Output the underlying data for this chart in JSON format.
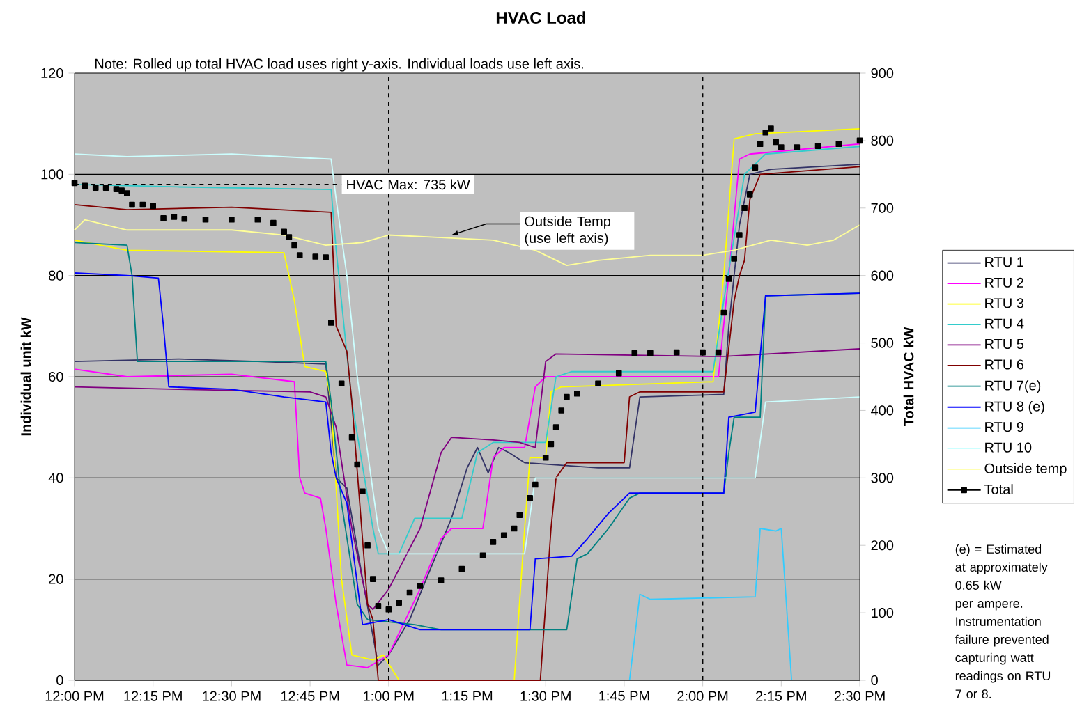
{
  "chart_data": {
    "type": "line",
    "title": "HVAC Load",
    "ylabel": "Individual unit kW",
    "y2label": "Total HVAC kW",
    "xlim": [
      12,
      14.5
    ],
    "xticks": [
      {
        "value": 12,
        "label": "12:00 PM"
      },
      {
        "value": 12.25,
        "label": "12:15 PM"
      },
      {
        "value": 12.5,
        "label": "12:30 PM"
      },
      {
        "value": 12.75,
        "label": "12:45 PM"
      },
      {
        "value": 13,
        "label": "1:00 PM"
      },
      {
        "value": 13.25,
        "label": "1:15 PM"
      },
      {
        "value": 13.5,
        "label": "1:30 PM"
      },
      {
        "value": 13.75,
        "label": "1:45 PM"
      },
      {
        "value": 14,
        "label": "2:00 PM"
      },
      {
        "value": 14.25,
        "label": "2:15 PM"
      },
      {
        "value": 14.5,
        "label": "2:30 PM"
      }
    ],
    "ylim": [
      0,
      120
    ],
    "yticks": [
      0,
      20,
      40,
      60,
      80,
      100,
      120
    ],
    "y2lim": [
      0,
      900
    ],
    "y2ticks": [
      0,
      100,
      200,
      300,
      400,
      500,
      600,
      700,
      800,
      900
    ],
    "grid": "y",
    "legend": "right",
    "series": [
      {
        "name": "RTU 1",
        "color": "#333366",
        "x": [
          12,
          12.333,
          12.583,
          12.8,
          12.833,
          12.867,
          12.917,
          12.967,
          13,
          13.067,
          13.133,
          13.2,
          13.25,
          13.283,
          13.317,
          13.35,
          13.383,
          13.433,
          13.667,
          13.767,
          13.8,
          14.067,
          14.083,
          14.117,
          14.15,
          14.217,
          14.5
        ],
        "values": [
          63,
          63.5,
          63,
          62.5,
          40,
          38,
          20,
          3,
          5,
          12,
          22,
          32,
          42,
          46,
          41,
          46,
          45,
          43,
          42,
          42,
          56,
          56.5,
          70,
          90,
          100,
          101,
          102
        ]
      },
      {
        "name": "RTU 2",
        "color": "#ff00ff",
        "x": [
          12,
          12.167,
          12.5,
          12.7,
          12.717,
          12.733,
          12.783,
          12.8,
          12.833,
          12.867,
          12.933,
          13,
          13.1,
          13.167,
          13.2,
          13.3,
          13.333,
          13.367,
          13.433,
          13.467,
          13.5,
          14.05,
          14.083,
          14.117,
          14.15,
          14.5
        ],
        "values": [
          61.5,
          60,
          60.5,
          59,
          40,
          37,
          36,
          30,
          15,
          3,
          2.5,
          5,
          18,
          28,
          30,
          30,
          44,
          46,
          46,
          58,
          60,
          60,
          80,
          103,
          104,
          106
        ]
      },
      {
        "name": "RTU 3",
        "color": "#ffff00",
        "x": [
          12,
          12.083,
          12.167,
          12.667,
          12.7,
          12.733,
          12.8,
          12.817,
          12.85,
          12.883,
          12.95,
          12.983,
          13.033,
          13.4,
          13.433,
          13.45,
          13.5,
          13.517,
          13.55,
          14.033,
          14.067,
          14.1,
          14.167,
          14.5
        ],
        "values": [
          87,
          86,
          85,
          84.5,
          75,
          62,
          61,
          55,
          20,
          5,
          4,
          5,
          0,
          0,
          30,
          44,
          44,
          57,
          58,
          59,
          80,
          107,
          108,
          109
        ]
      },
      {
        "name": "RTU 4",
        "color": "#33cccc",
        "x": [
          12,
          12.333,
          12.817,
          12.833,
          12.883,
          12.95,
          12.967,
          13.033,
          13.083,
          13.233,
          13.283,
          13.333,
          13.5,
          13.533,
          13.583,
          14.033,
          14.067,
          14.133,
          14.2,
          14.5
        ],
        "values": [
          98,
          97.5,
          97,
          85,
          55,
          30,
          25,
          25,
          32,
          32,
          45,
          47,
          47,
          60,
          61,
          61,
          75,
          100,
          104,
          105.5
        ]
      },
      {
        "name": "RTU 5",
        "color": "#800080",
        "x": [
          12,
          12.333,
          12.75,
          12.8,
          12.833,
          12.883,
          12.933,
          12.95,
          13,
          13.1,
          13.167,
          13.2,
          13.333,
          13.417,
          13.467,
          13.5,
          13.533,
          14.033,
          14.067,
          14.5
        ],
        "values": [
          58,
          57.5,
          57,
          56,
          50,
          30,
          15,
          14,
          18,
          30,
          45,
          48,
          47.5,
          47,
          46,
          63,
          64.5,
          64,
          64,
          65.5
        ]
      },
      {
        "name": "RTU 6",
        "color": "#800000",
        "x": [
          12,
          12.167,
          12.5,
          12.817,
          12.833,
          12.867,
          12.883,
          12.933,
          12.95,
          12.967,
          13.483,
          13.517,
          13.533,
          13.567,
          13.75,
          13.767,
          13.8,
          14.067,
          14.1,
          14.117,
          14.133,
          14.15,
          14.183,
          14.5
        ],
        "values": [
          94,
          93,
          93.5,
          92.5,
          70,
          65,
          55,
          15,
          12,
          0,
          0,
          30,
          40,
          43,
          43,
          56,
          57,
          57,
          75,
          80,
          83,
          95,
          100,
          101.5
        ]
      },
      {
        "name": "RTU 7(e)",
        "color": "#008080",
        "x": [
          12,
          12.167,
          12.183,
          12.2,
          12.8,
          12.817,
          12.85,
          12.9,
          12.933,
          13.083,
          13.167,
          13.567,
          13.6,
          13.633,
          13.7,
          13.767,
          13.8,
          14.067,
          14.083,
          14.1,
          14.183,
          14.2,
          14.5
        ],
        "values": [
          86.5,
          86,
          80,
          63,
          63,
          55,
          35,
          15,
          12,
          11,
          10,
          10,
          24,
          25,
          30,
          36,
          37,
          37,
          45,
          52,
          52,
          76,
          76.5
        ]
      },
      {
        "name": "RTU 8 (e)",
        "color": "#0000ff",
        "x": [
          12,
          12.167,
          12.267,
          12.283,
          12.3,
          12.5,
          12.667,
          12.8,
          12.817,
          12.833,
          12.867,
          12.917,
          13,
          13.1,
          13.45,
          13.467,
          13.583,
          13.633,
          13.7,
          13.767,
          14.067,
          14.083,
          14.167,
          14.2,
          14.5
        ],
        "values": [
          80.5,
          80,
          79.5,
          70,
          58,
          57.5,
          56,
          55,
          45,
          40,
          35,
          11,
          12,
          10,
          10,
          24,
          24.5,
          28,
          33,
          37,
          37,
          52,
          53,
          76,
          76.5
        ]
      },
      {
        "name": "RTU 9",
        "color": "#33ccff",
        "x": [
          13.767,
          13.8,
          13.833,
          14.167,
          14.183,
          14.233,
          14.25,
          14.283
        ],
        "values": [
          0,
          17,
          16,
          16.5,
          30,
          29.5,
          30,
          0
        ]
      },
      {
        "name": "RTU 10",
        "color": "#ccffff",
        "x": [
          12,
          12.167,
          12.5,
          12.817,
          12.833,
          12.867,
          12.9,
          12.933,
          12.967,
          13,
          13.433,
          13.467,
          14.167,
          14.2,
          14.5
        ],
        "values": [
          104,
          103.5,
          104,
          103,
          95,
          80,
          60,
          45,
          30,
          25,
          25,
          40,
          40,
          55,
          56
        ]
      },
      {
        "name": "Outside temp",
        "color": "#ffff99",
        "x": [
          12,
          12.033,
          12.167,
          12.5,
          12.667,
          12.8,
          12.917,
          13,
          13.167,
          13.333,
          13.467,
          13.567,
          13.667,
          13.833,
          14,
          14.1,
          14.217,
          14.333,
          14.417,
          14.5
        ],
        "values": [
          89,
          91,
          89,
          89,
          88,
          86,
          86.5,
          88,
          87.5,
          87,
          85,
          82,
          83,
          84,
          84,
          85,
          87,
          86,
          87,
          90
        ]
      },
      {
        "name": "Total",
        "type": "scatter",
        "marker": "square",
        "axis": "y2",
        "color": "#000000",
        "x": [
          12,
          12.033,
          12.067,
          12.1,
          12.133,
          12.15,
          12.167,
          12.183,
          12.217,
          12.25,
          12.283,
          12.317,
          12.35,
          12.417,
          12.5,
          12.583,
          12.633,
          12.667,
          12.683,
          12.7,
          12.717,
          12.767,
          12.8,
          12.817,
          12.85,
          12.883,
          12.9,
          12.917,
          12.933,
          12.95,
          12.967,
          13,
          13.033,
          13.067,
          13.1,
          13.167,
          13.233,
          13.3,
          13.333,
          13.367,
          13.4,
          13.417,
          13.45,
          13.467,
          13.5,
          13.517,
          13.533,
          13.55,
          13.567,
          13.6,
          13.667,
          13.733,
          13.783,
          13.833,
          13.917,
          14,
          14.05,
          14.067,
          14.083,
          14.1,
          14.117,
          14.133,
          14.15,
          14.167,
          14.183,
          14.2,
          14.217,
          14.233,
          14.25,
          14.3,
          14.367,
          14.433,
          14.5
        ],
        "values": [
          737,
          733,
          730,
          730,
          728,
          726,
          722,
          705,
          705,
          703,
          685,
          687,
          684,
          683,
          683,
          683,
          678,
          665,
          657,
          645,
          630,
          628,
          627,
          530,
          440,
          360,
          320,
          280,
          200,
          150,
          110,
          105,
          115,
          130,
          140,
          148,
          165,
          185,
          205,
          215,
          225,
          245,
          270,
          290,
          330,
          350,
          375,
          400,
          420,
          425,
          440,
          455,
          485,
          485,
          486,
          486,
          486,
          545,
          595,
          625,
          660,
          700,
          720,
          760,
          795,
          812,
          818,
          798,
          790,
          790,
          792,
          795,
          800
        ]
      }
    ],
    "ref_lines": [
      {
        "axis": "x",
        "value": 13,
        "line_style": "dashed",
        "color": "#000000"
      },
      {
        "axis": "x",
        "value": 14,
        "line_style": "dashed",
        "color": "#000000"
      },
      {
        "axis": "y2",
        "value": 735,
        "label": "HVAC Max: 735 kW",
        "line_style": "dashed",
        "color": "#000000"
      }
    ],
    "annotations": [
      "Note: Rolled up total HVAC load uses right y-axis.  Individual loads use left axis.",
      {
        "text": "Outside Temp (use left axis)",
        "x": 13.2,
        "y": 88
      },
      "(e) = Estimated at approximately 0.65 kW per ampere. Instrumentation failure prevented capturing watt readings on RTU 7 or 8."
    ]
  }
}
